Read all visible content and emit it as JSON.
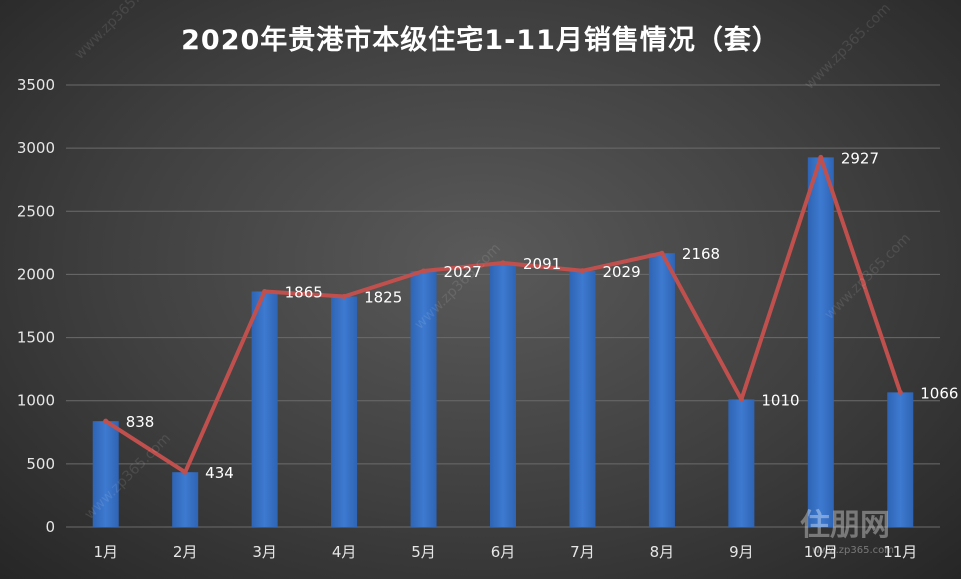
{
  "chart_data": {
    "type": "bar",
    "title": "2020年贵港市本级住宅1-11月销售情况（套）",
    "categories": [
      "1月",
      "2月",
      "3月",
      "4月",
      "5月",
      "6月",
      "7月",
      "8月",
      "9月",
      "10月",
      "11月"
    ],
    "series": [
      {
        "type": "bar",
        "values": [
          838,
          434,
          1865,
          1825,
          2027,
          2091,
          2029,
          2168,
          1010,
          2927,
          1066
        ]
      },
      {
        "type": "line",
        "values": [
          838,
          434,
          1865,
          1825,
          2027,
          2091,
          2029,
          2168,
          1010,
          2927,
          1066
        ]
      }
    ],
    "ylim": [
      0,
      3500
    ],
    "yticks": [
      0,
      500,
      1000,
      1500,
      2000,
      2500,
      3000,
      3500
    ],
    "grid": true,
    "legend": "none",
    "colors": {
      "bar": "#3d7ad0",
      "line": "#c0504d",
      "grid": "#6b6b6b",
      "text": "#e6e6e6"
    }
  },
  "watermark": {
    "text": "www.zp365.com",
    "logo_text": "住朋网",
    "logo_url": "www.zp365.com"
  }
}
